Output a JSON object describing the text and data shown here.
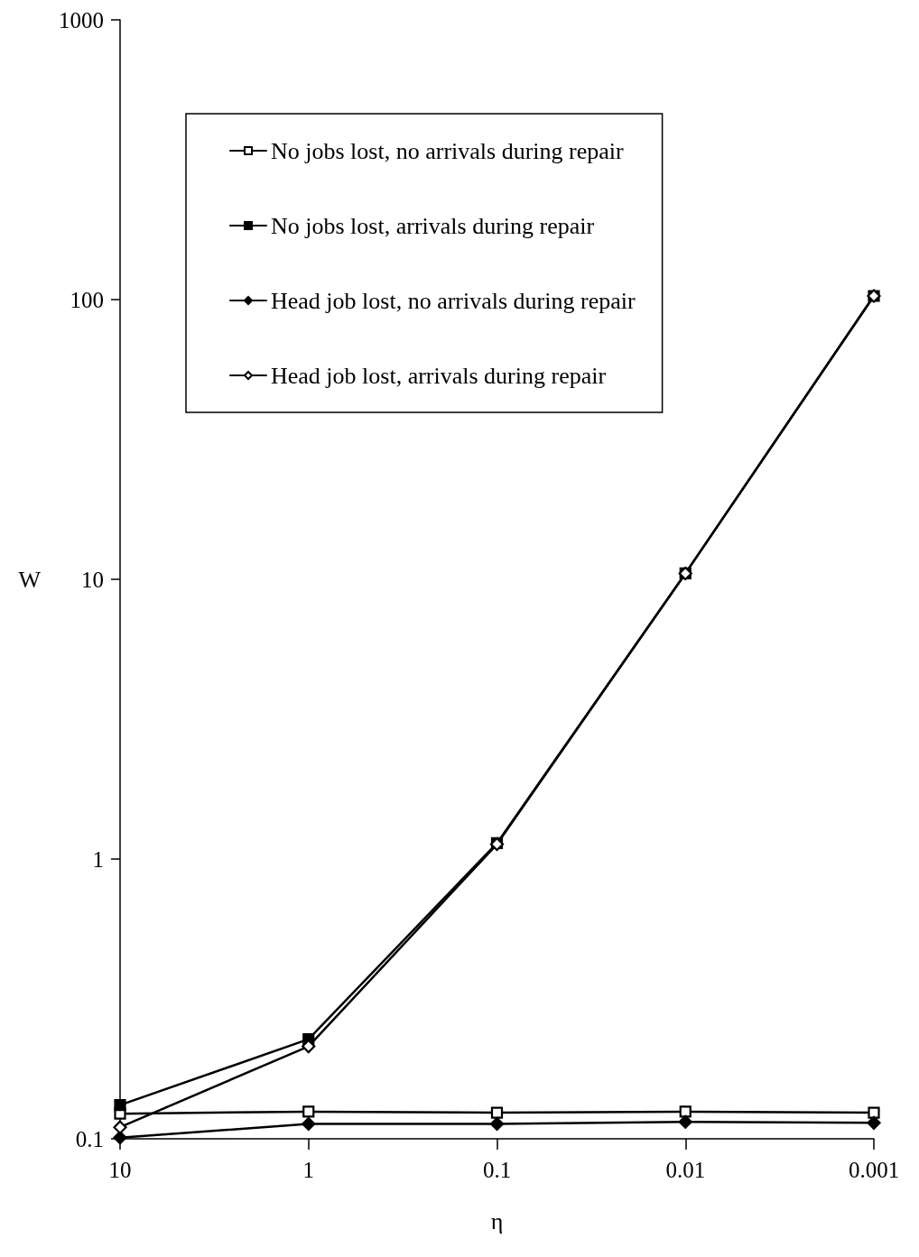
{
  "chart_data": {
    "type": "line",
    "xlabel": "η",
    "ylabel": "W",
    "categories": [
      "10",
      "1",
      "0.1",
      "0.01",
      "0.001"
    ],
    "log": "y",
    "ylim": [
      0.1,
      1000
    ],
    "yticks": [
      0.1,
      1,
      10,
      100,
      1000
    ],
    "grid": false,
    "legend": "top left",
    "line_style": "solid",
    "series": [
      {
        "name": "No jobs lost, no arrivals during repair",
        "color": "#000000",
        "marker": "square",
        "values": [
          0.123,
          0.125,
          0.124,
          0.125,
          0.124
        ]
      },
      {
        "name": "No jobs lost, arrivals during repair",
        "color": "#000000",
        "marker": "square",
        "values": [
          0.132,
          0.227,
          1.14,
          10.5,
          103
        ]
      },
      {
        "name": "Head job lost, no arrivals during repair",
        "color": "#000000",
        "marker": "diamond",
        "values": [
          0.101,
          0.113,
          0.113,
          0.115,
          0.114
        ]
      },
      {
        "name": "Head job lost, arrivals during repair",
        "color": "#000000",
        "marker": "diamond",
        "values": [
          0.11,
          0.214,
          1.13,
          10.5,
          103
        ]
      }
    ]
  }
}
